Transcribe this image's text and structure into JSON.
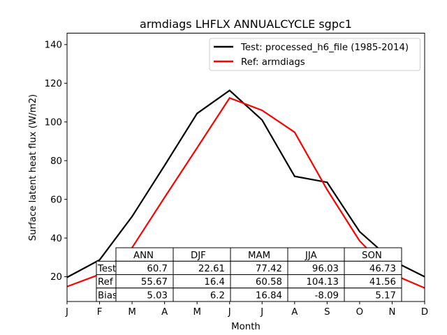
{
  "chart_data": {
    "type": "line",
    "title": "armdiags LHFLX ANNUALCYCLE sgpc1",
    "xlabel": "Month",
    "ylabel": "Surface latent heat flux (W/m2)",
    "categories": [
      "J",
      "F",
      "M",
      "A",
      "M",
      "J",
      "J",
      "A",
      "S",
      "O",
      "N",
      "D"
    ],
    "ylim": [
      7.2,
      145.9
    ],
    "yticks": [
      20,
      40,
      60,
      80,
      100,
      120,
      140
    ],
    "grid": false,
    "legend_position": "top-right",
    "series": [
      {
        "name": "Test: processed_h6_file (1985-2014)",
        "color": "#000000",
        "values": [
          19.7,
          28.7,
          51.1,
          77.5,
          104.4,
          116.3,
          101.0,
          71.9,
          68.8,
          43.3,
          28.4,
          20.0
        ]
      },
      {
        "name": "Ref: armdiags",
        "color": "#ff0000",
        "values": [
          14.9,
          21.2,
          35.0,
          61.0,
          86.6,
          112.4,
          106.0,
          94.7,
          65.0,
          38.5,
          21.4,
          14.2
        ]
      }
    ],
    "table": {
      "columns": [
        "ANN",
        "DJF",
        "MAM",
        "JJA",
        "SON"
      ],
      "rows": [
        {
          "label": "Test",
          "values": [
            "60.7",
            "22.61",
            "77.42",
            "96.03",
            "46.73"
          ]
        },
        {
          "label": "Ref",
          "values": [
            "55.67",
            "16.4",
            "60.58",
            "104.13",
            "41.56"
          ]
        },
        {
          "label": "Bias",
          "values": [
            "5.03",
            "6.2",
            "16.84",
            "-8.09",
            "5.17"
          ]
        }
      ]
    }
  }
}
